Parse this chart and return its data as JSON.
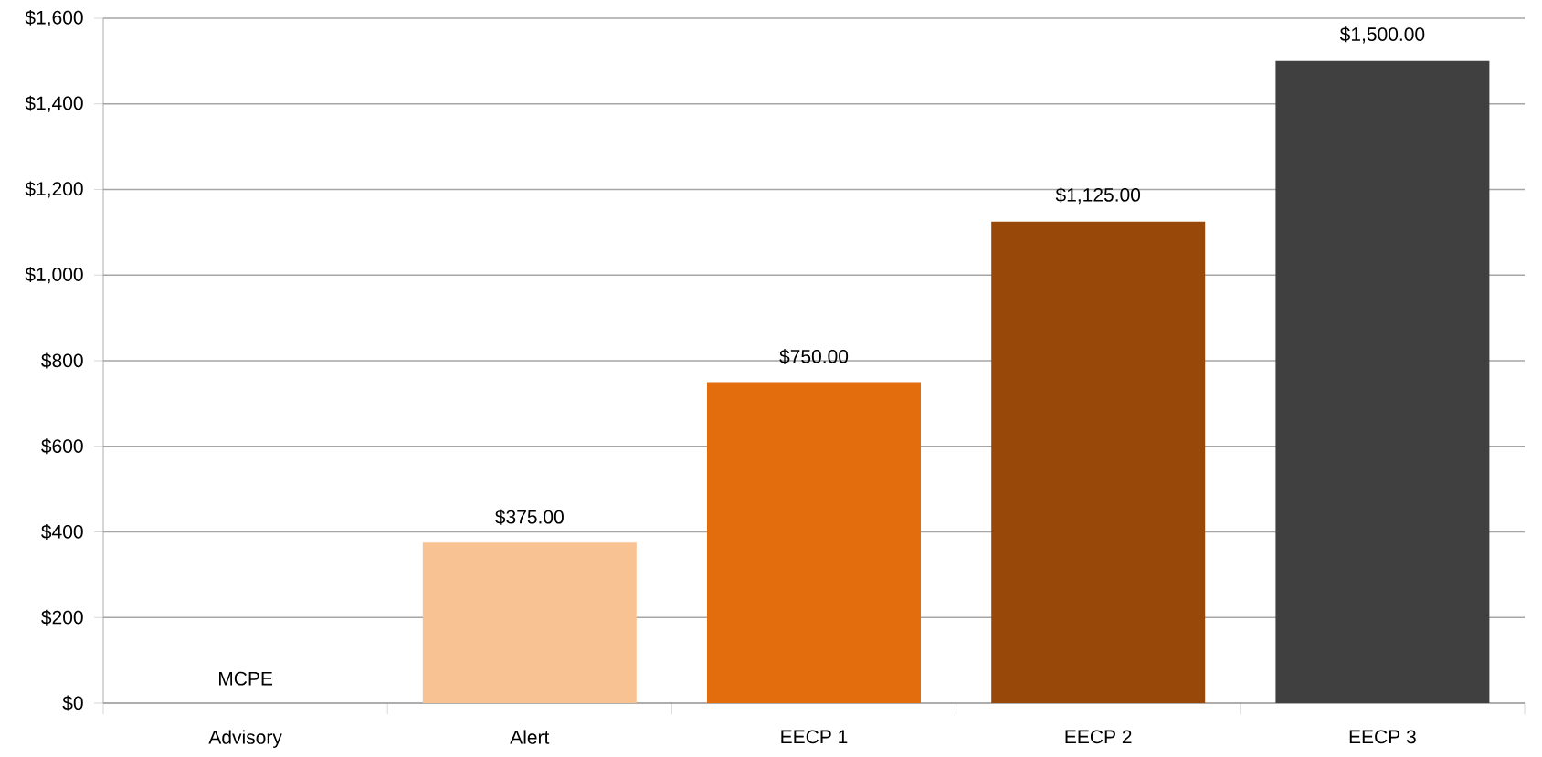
{
  "chart_data": {
    "type": "bar",
    "categories": [
      "Advisory",
      "Alert",
      "EECP 1",
      "EECP 2",
      "EECP 3"
    ],
    "values": [
      0,
      375,
      750,
      1125,
      1500
    ],
    "colors": [
      "#f9c292",
      "#f9c292",
      "#e36c0d",
      "#984809",
      "#404040"
    ],
    "value_labels": [
      "MCPE",
      "$375.00",
      "$750.00",
      "$1,125.00",
      "$1,500.00"
    ],
    "ylim": [
      0,
      1600
    ],
    "yticks": [
      {
        "value": 0,
        "label": "$0"
      },
      {
        "value": 200,
        "label": "$200"
      },
      {
        "value": 400,
        "label": "$400"
      },
      {
        "value": 600,
        "label": "$600"
      },
      {
        "value": 800,
        "label": "$800"
      },
      {
        "value": 1000,
        "label": "$1,000"
      },
      {
        "value": 1200,
        "label": "$1,200"
      },
      {
        "value": 1400,
        "label": "$1,400"
      },
      {
        "value": 1600,
        "label": "$1,600"
      }
    ],
    "grid": "y"
  }
}
